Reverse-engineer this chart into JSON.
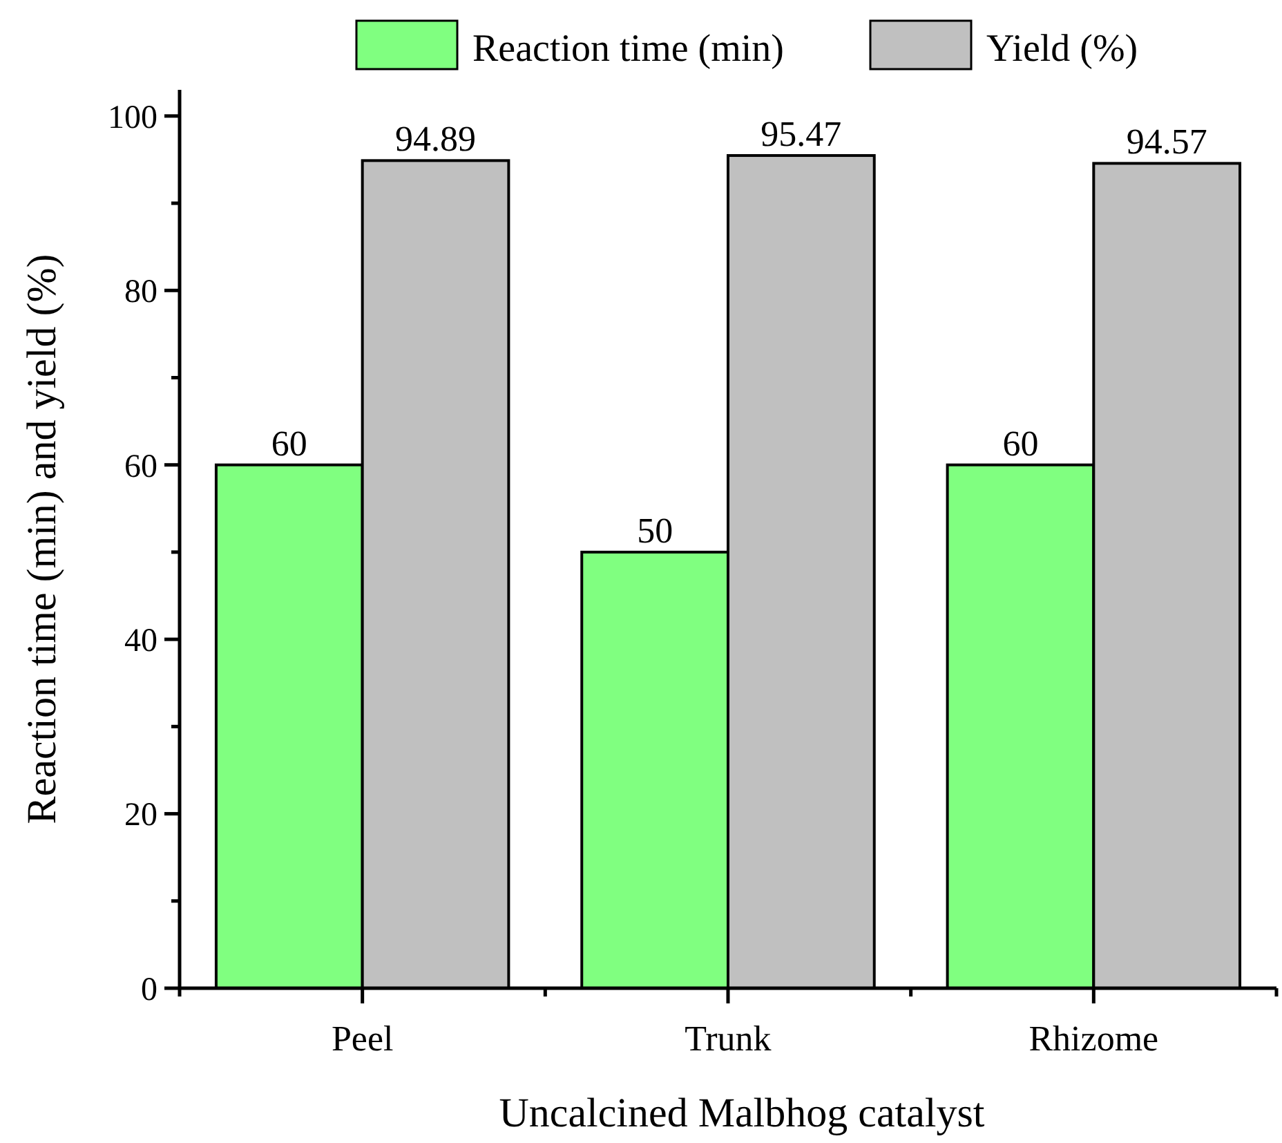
{
  "chart_data": {
    "type": "bar",
    "xlabel": "Uncalcined Malbhog catalyst",
    "ylabel": "Reaction time (min) and yield (%)",
    "categories": [
      "Peel",
      "Trunk",
      "Rhizome"
    ],
    "series": [
      {
        "name": "Reaction time (min)",
        "color": "#80ff80",
        "values": [
          60,
          50,
          60
        ]
      },
      {
        "name": "Yield (%)",
        "color": "#c0c0c0",
        "values": [
          94.89,
          95.47,
          94.57
        ]
      }
    ],
    "ylim": [
      0,
      103
    ],
    "yticks": [
      0,
      {
        "value": 10,
        "label": null
      },
      20,
      {
        "value": 30,
        "label": null
      },
      40,
      {
        "value": 50,
        "label": null
      },
      60,
      {
        "value": 70,
        "label": null
      },
      80,
      {
        "value": 90,
        "label": null
      },
      100
    ],
    "data_labels": true,
    "legend": "top",
    "grid": false
  }
}
